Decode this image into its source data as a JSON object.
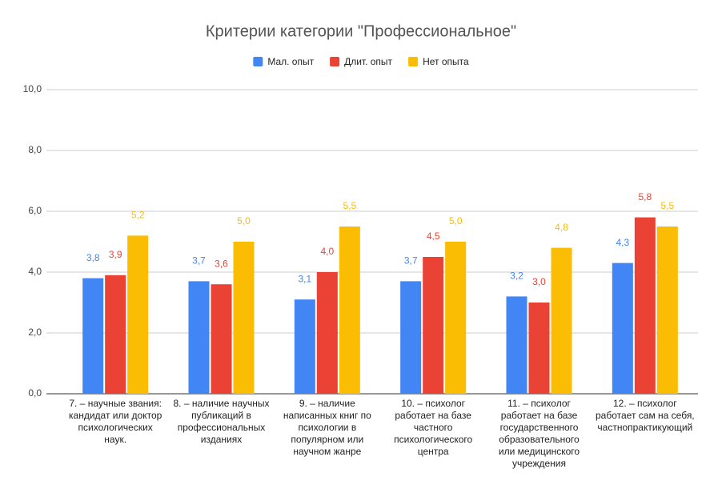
{
  "chart_data": {
    "type": "bar",
    "title": "Критерии категории \"Профессиональное\"",
    "categories": [
      "7. – научные звания: кандидат или доктор психологических наук.",
      "8. – наличие научных публикаций в профессиональных изданиях",
      "9. – наличие написанных книг по психологии в популярном или научном жанре",
      "10. – психолог работает на базе частного психологического центра",
      "11. – психолог работает на базе государственного образовательного или медицинского учреждения",
      "12. – психолог работает сам на себя, частнопрактикующий"
    ],
    "series": [
      {
        "name": "Мал. опыт",
        "color": "#4285f4",
        "values": [
          3.8,
          3.7,
          3.1,
          3.7,
          3.2,
          4.3
        ],
        "value_labels": [
          "3,8",
          "3,7",
          "3,1",
          "3,7",
          "3,2",
          "4,3"
        ]
      },
      {
        "name": "Длит. опыт",
        "color": "#ea4335",
        "values": [
          3.9,
          3.6,
          4.0,
          4.5,
          3.0,
          5.8
        ],
        "value_labels": [
          "3,9",
          "3,6",
          "4,0",
          "4,5",
          "3,0",
          "5,8"
        ]
      },
      {
        "name": "Нет опыта",
        "color": "#fbbc04",
        "values": [
          5.2,
          5.0,
          5.5,
          5.0,
          4.8,
          5.5
        ],
        "value_labels": [
          "5,2",
          "5,0",
          "5,5",
          "5,0",
          "4,8",
          "5,5"
        ]
      }
    ],
    "ylim": [
      0,
      10
    ],
    "yticks": [
      {
        "value": 0,
        "label": "0,0"
      },
      {
        "value": 2,
        "label": "2,0"
      },
      {
        "value": 4,
        "label": "4,0"
      },
      {
        "value": 6,
        "label": "6,0"
      },
      {
        "value": 8,
        "label": "8,0"
      },
      {
        "value": 10,
        "label": "10,0"
      }
    ],
    "grid": true,
    "legend": "top"
  }
}
